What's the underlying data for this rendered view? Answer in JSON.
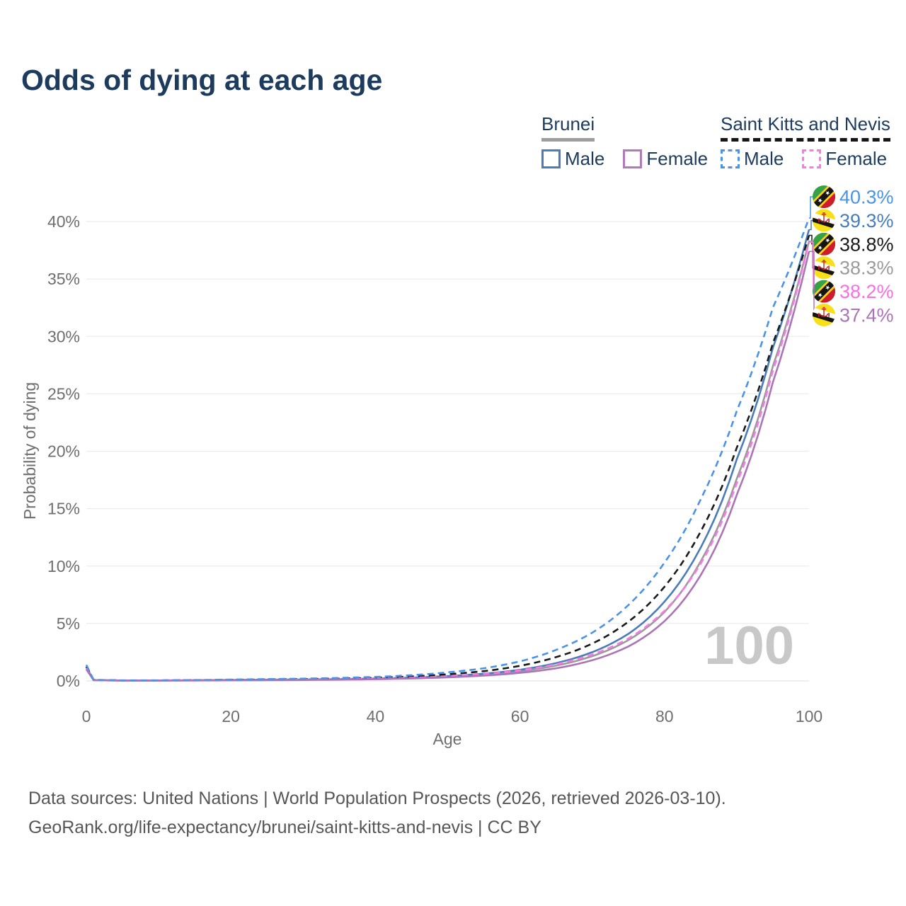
{
  "title": "Odds of dying at each age",
  "legend": {
    "groups": [
      {
        "name": "Brunei",
        "line_style": "solid",
        "underline_color": "#9e9e9e",
        "items": [
          {
            "label": "Male",
            "color": "#4a7cba"
          },
          {
            "label": "Female",
            "color": "#b279bb"
          }
        ]
      },
      {
        "name": "Saint Kitts and Nevis",
        "line_style": "dashed",
        "underline_color": "#161616",
        "items": [
          {
            "label": "Male",
            "color": "#4b93e8"
          },
          {
            "label": "Female",
            "color": "#f97ae6"
          }
        ]
      }
    ]
  },
  "chart_data": {
    "type": "line",
    "title": "Odds of dying at each age",
    "xlabel": "Age",
    "ylabel": "Probability of dying",
    "xlim": [
      0,
      100
    ],
    "ylim_percent": [
      0,
      40
    ],
    "xticks": [
      0,
      20,
      40,
      60,
      80,
      100
    ],
    "yticks": [
      "0%",
      "5%",
      "10%",
      "15%",
      "20%",
      "25%",
      "30%",
      "35%",
      "40%"
    ],
    "grid": "horizontal",
    "legend_position": "top-right",
    "watermark": "100",
    "ages": [
      0,
      1,
      5,
      10,
      15,
      20,
      25,
      30,
      35,
      40,
      45,
      50,
      55,
      60,
      65,
      70,
      75,
      80,
      85,
      90,
      95,
      100
    ],
    "series": [
      {
        "name": "Saint Kitts and Nevis — Male",
        "country": "saint-kitts-and-nevis",
        "sex": "male",
        "color": "#4b93e8",
        "dashed": true,
        "values_percent": [
          1.4,
          0.1,
          0.05,
          0.05,
          0.08,
          0.12,
          0.16,
          0.2,
          0.26,
          0.35,
          0.5,
          0.75,
          1.1,
          1.7,
          2.7,
          4.2,
          6.6,
          10.3,
          15.8,
          23.5,
          32.5,
          40.3
        ],
        "end_label": {
          "text": "40.3%",
          "color": "#4b93e8"
        }
      },
      {
        "name": "Brunei — Male",
        "country": "brunei",
        "sex": "male",
        "color": "#4a7cba",
        "dashed": false,
        "values_percent": [
          1.2,
          0.08,
          0.04,
          0.04,
          0.06,
          0.09,
          0.11,
          0.13,
          0.16,
          0.21,
          0.29,
          0.42,
          0.63,
          0.97,
          1.55,
          2.5,
          4.1,
          6.9,
          11.6,
          19.3,
          29.0,
          39.3
        ],
        "end_label": {
          "text": "39.3%",
          "color": "#4a7cba"
        }
      },
      {
        "name": "Saint Kitts and Nevis — Both sexes",
        "country": "saint-kitts-and-nevis",
        "sex": "both",
        "color": "#1a1a1a",
        "dashed": true,
        "values_percent": [
          1.25,
          0.09,
          0.045,
          0.045,
          0.065,
          0.095,
          0.125,
          0.155,
          0.2,
          0.27,
          0.39,
          0.58,
          0.85,
          1.31,
          2.07,
          3.25,
          5.15,
          8.2,
          13.0,
          20.3,
          29.4,
          38.8
        ],
        "end_label": {
          "text": "38.8%",
          "color": "#1a1a1a"
        }
      },
      {
        "name": "Brunei — Both sexes",
        "country": "brunei",
        "sex": "both",
        "color": "#9a9a9a",
        "dashed": false,
        "values_percent": [
          1.1,
          0.075,
          0.035,
          0.035,
          0.05,
          0.07,
          0.09,
          0.11,
          0.14,
          0.18,
          0.25,
          0.37,
          0.55,
          0.84,
          1.33,
          2.15,
          3.55,
          6.0,
          10.4,
          17.6,
          27.4,
          38.3
        ],
        "end_label": {
          "text": "38.3%",
          "color": "#9b9b9b"
        }
      },
      {
        "name": "Saint Kitts and Nevis — Female",
        "country": "saint-kitts-and-nevis",
        "sex": "female",
        "color": "#f97ae6",
        "dashed": true,
        "values_percent": [
          1.1,
          0.08,
          0.04,
          0.04,
          0.05,
          0.07,
          0.09,
          0.11,
          0.14,
          0.19,
          0.27,
          0.4,
          0.6,
          0.92,
          1.45,
          2.3,
          3.7,
          6.1,
          10.2,
          17.2,
          27.0,
          38.2
        ],
        "end_label": {
          "text": "38.2%",
          "color": "#f970e2"
        }
      },
      {
        "name": "Brunei — Female",
        "country": "brunei",
        "sex": "female",
        "color": "#aa74b6",
        "dashed": false,
        "values_percent": [
          1.0,
          0.07,
          0.03,
          0.03,
          0.04,
          0.05,
          0.06,
          0.08,
          0.11,
          0.15,
          0.21,
          0.31,
          0.46,
          0.7,
          1.1,
          1.8,
          3.0,
          5.2,
          9.2,
          16.2,
          26.0,
          37.4
        ],
        "end_label": {
          "text": "37.4%",
          "color": "#aa74b6"
        }
      }
    ]
  },
  "footer": {
    "line1": "Data sources: United Nations | World Population Prospects (2026, retrieved 2026-03-10).",
    "line2": "GeoRank.org/life-expectancy/brunei/saint-kitts-and-nevis | CC BY"
  }
}
